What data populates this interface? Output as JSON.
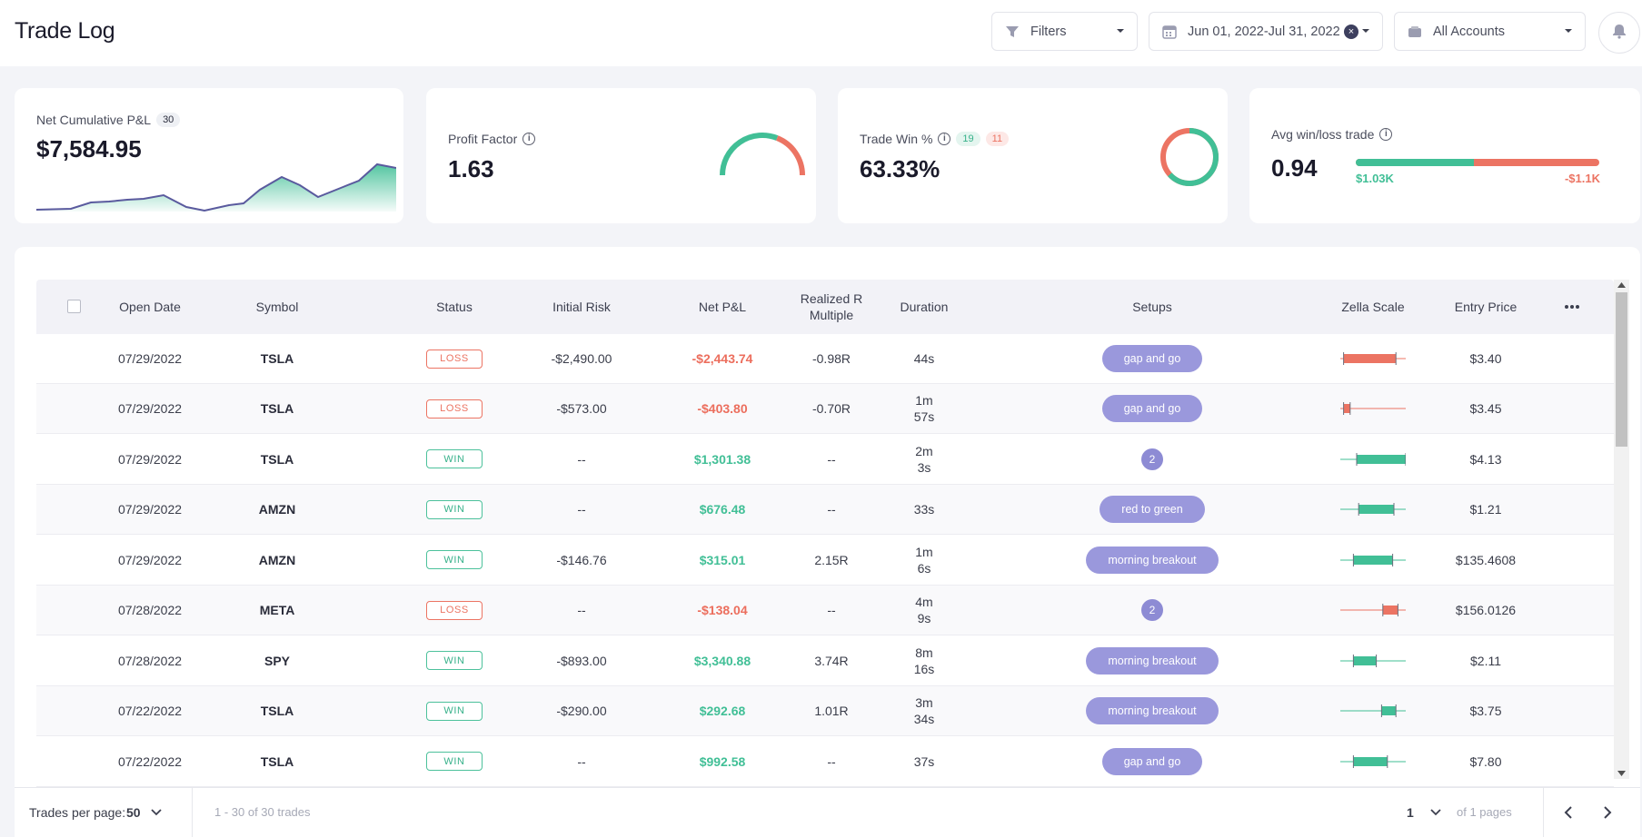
{
  "header": {
    "title": "Trade Log",
    "filters_label": "Filters",
    "date_range": "Jun 01, 2022-Jul 31, 2022",
    "accounts_label": "All Accounts"
  },
  "cards": {
    "net_pnl": {
      "label": "Net Cumulative P&L",
      "count": "30",
      "value": "$7,584.95"
    },
    "profit_factor": {
      "label": "Profit Factor",
      "value": "1.63",
      "gauge_fraction": 0.62
    },
    "win_pct": {
      "label": "Trade Win %",
      "wins": "19",
      "losses": "11",
      "value": "63.33%",
      "win_fraction": 0.6333
    },
    "avg_win_loss": {
      "label": "Avg win/loss trade",
      "value": "0.94",
      "avg_win": "$1.03K",
      "avg_loss": "-$1.1K",
      "win_fraction": 0.485
    }
  },
  "colors": {
    "win": "#41bf96",
    "loss": "#ec7463",
    "setup": "#9a98dc"
  },
  "columns": {
    "open_date": "Open Date",
    "symbol": "Symbol",
    "status": "Status",
    "initial_risk": "Initial Risk",
    "net_pnl": "Net P&L",
    "realized_r_1": "Realized R",
    "realized_r_2": "Multiple",
    "duration": "Duration",
    "setups": "Setups",
    "zella_scale": "Zella Scale",
    "entry_price": "Entry Price"
  },
  "trades": [
    {
      "date": "07/29/2022",
      "symbol": "TSLA",
      "status": "LOSS",
      "risk": "-$2,490.00",
      "pnl": "-$2,443.74",
      "r": "-0.98R",
      "dur1": "44s",
      "dur2": "",
      "setup": "gap and go",
      "entry": "$3.40"
    },
    {
      "date": "07/29/2022",
      "symbol": "TSLA",
      "status": "LOSS",
      "risk": "-$573.00",
      "pnl": "-$403.80",
      "r": "-0.70R",
      "dur1": "1m",
      "dur2": "57s",
      "setup": "gap and go",
      "entry": "$3.45"
    },
    {
      "date": "07/29/2022",
      "symbol": "TSLA",
      "status": "WIN",
      "risk": "--",
      "pnl": "$1,301.38",
      "r": "--",
      "dur1": "2m",
      "dur2": "3s",
      "setup": "2",
      "entry": "$4.13"
    },
    {
      "date": "07/29/2022",
      "symbol": "AMZN",
      "status": "WIN",
      "risk": "--",
      "pnl": "$676.48",
      "r": "--",
      "dur1": "33s",
      "dur2": "",
      "setup": "red to green",
      "entry": "$1.21"
    },
    {
      "date": "07/29/2022",
      "symbol": "AMZN",
      "status": "WIN",
      "risk": "-$146.76",
      "pnl": "$315.01",
      "r": "2.15R",
      "dur1": "1m",
      "dur2": "6s",
      "setup": "morning breakout",
      "entry": "$135.4608"
    },
    {
      "date": "07/28/2022",
      "symbol": "META",
      "status": "LOSS",
      "risk": "--",
      "pnl": "-$138.04",
      "r": "--",
      "dur1": "4m",
      "dur2": "9s",
      "setup": "2",
      "entry": "$156.0126"
    },
    {
      "date": "07/28/2022",
      "symbol": "SPY",
      "status": "WIN",
      "risk": "-$893.00",
      "pnl": "$3,340.88",
      "r": "3.74R",
      "dur1": "8m",
      "dur2": "16s",
      "setup": "morning breakout",
      "entry": "$2.11"
    },
    {
      "date": "07/22/2022",
      "symbol": "TSLA",
      "status": "WIN",
      "risk": "-$290.00",
      "pnl": "$292.68",
      "r": "1.01R",
      "dur1": "3m",
      "dur2": "34s",
      "setup": "morning breakout",
      "entry": "$3.75"
    },
    {
      "date": "07/22/2022",
      "symbol": "TSLA",
      "status": "WIN",
      "risk": "--",
      "pnl": "$992.58",
      "r": "--",
      "dur1": "37s",
      "dur2": "",
      "setup": "gap and go",
      "entry": "$7.80"
    }
  ],
  "zella": [
    {
      "kind": "loss",
      "from": 0.05,
      "to": 0.85
    },
    {
      "kind": "loss",
      "from": 0.05,
      "to": 0.15
    },
    {
      "kind": "win",
      "from": 0.25,
      "to": 1.0
    },
    {
      "kind": "win",
      "from": 0.28,
      "to": 0.82
    },
    {
      "kind": "win",
      "from": 0.2,
      "to": 0.8
    },
    {
      "kind": "loss",
      "from": 0.65,
      "to": 0.88
    },
    {
      "kind": "win",
      "from": 0.2,
      "to": 0.55
    },
    {
      "kind": "win",
      "from": 0.63,
      "to": 0.85
    },
    {
      "kind": "win",
      "from": 0.2,
      "to": 0.72
    }
  ],
  "footer": {
    "per_page_label": "Trades per page:",
    "per_page_value": "50",
    "range_text": "1 - 30 of 30 trades",
    "page": "1",
    "pages_text": "of 1 pages"
  }
}
